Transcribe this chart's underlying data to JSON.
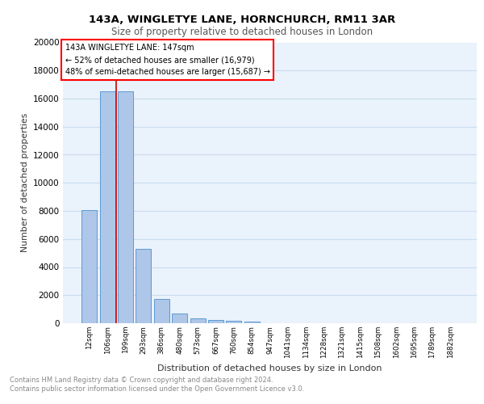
{
  "title": "143A, WINGLETYE LANE, HORNCHURCH, RM11 3AR",
  "subtitle": "Size of property relative to detached houses in London",
  "xlabel": "Distribution of detached houses by size in London",
  "ylabel": "Number of detached properties",
  "categories": [
    "12sqm",
    "106sqm",
    "199sqm",
    "293sqm",
    "386sqm",
    "480sqm",
    "573sqm",
    "667sqm",
    "760sqm",
    "854sqm",
    "947sqm",
    "1041sqm",
    "1134sqm",
    "1228sqm",
    "1321sqm",
    "1415sqm",
    "1508sqm",
    "1602sqm",
    "1695sqm",
    "1789sqm",
    "1882sqm"
  ],
  "values": [
    8050,
    16500,
    16500,
    5300,
    1750,
    700,
    350,
    250,
    150,
    100,
    0,
    0,
    0,
    0,
    0,
    0,
    0,
    0,
    0,
    0,
    0
  ],
  "bar_color": "#aec6e8",
  "bar_edge_color": "#5b9bd5",
  "grid_color": "#c8ddf0",
  "annotation_text": "143A WINGLETYE LANE: 147sqm\n← 52% of detached houses are smaller (16,979)\n48% of semi-detached houses are larger (15,687) →",
  "vline_x": 1.5,
  "vline_color": "#cc0000",
  "ylim": [
    0,
    20000
  ],
  "yticks": [
    0,
    2000,
    4000,
    6000,
    8000,
    10000,
    12000,
    14000,
    16000,
    18000,
    20000
  ],
  "footnote1": "Contains HM Land Registry data © Crown copyright and database right 2024.",
  "footnote2": "Contains public sector information licensed under the Open Government Licence v3.0.",
  "background_color": "#ffffff",
  "plot_bg_color": "#eaf2fb"
}
